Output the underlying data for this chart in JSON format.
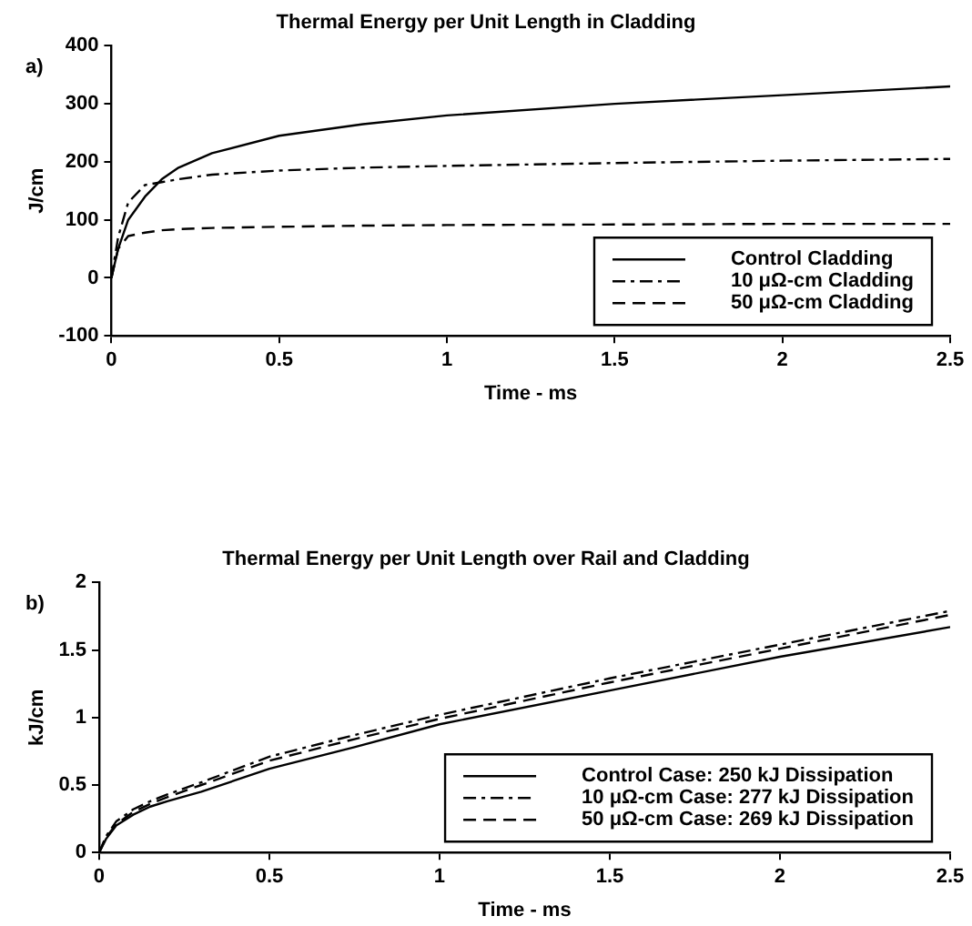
{
  "chart_data": [
    {
      "type": "line",
      "title": "Thermal Energy per Unit Length in Cladding",
      "xlabel": "Time - ms",
      "ylabel": "J/cm",
      "annotations": [
        "a)"
      ],
      "x": [
        0,
        0.02,
        0.05,
        0.1,
        0.15,
        0.2,
        0.3,
        0.5,
        0.75,
        1,
        1.5,
        2,
        2.5
      ],
      "series": [
        {
          "name": "Control Cladding",
          "color": "#000000",
          "line_style": "solid",
          "values": [
            0,
            50,
            100,
            140,
            170,
            190,
            215,
            245,
            265,
            280,
            300,
            315,
            330
          ]
        },
        {
          "name": "10 μΩ-cm Cladding",
          "color": "#000000",
          "line_style": "dashdot",
          "values": [
            0,
            70,
            130,
            160,
            165,
            170,
            178,
            185,
            190,
            193,
            198,
            202,
            205
          ]
        },
        {
          "name": "50 μΩ-cm Cladding",
          "color": "#000000",
          "line_style": "dashed",
          "values": [
            0,
            50,
            72,
            78,
            82,
            84,
            86,
            88,
            90,
            91,
            92,
            93,
            93
          ]
        }
      ],
      "xlim": [
        0,
        2.5
      ],
      "xticks": [
        0,
        0.5,
        1,
        1.5,
        2,
        2.5
      ],
      "ylim": [
        -100,
        400
      ],
      "yticks": [
        -100,
        0,
        100,
        200,
        300,
        400
      ],
      "grid": false,
      "legend": "bottom right",
      "marker": "none"
    },
    {
      "type": "line",
      "title": "Thermal Energy per Unit Length over Rail and Cladding",
      "xlabel": "Time - ms",
      "ylabel": "kJ/cm",
      "annotations": [
        "b)"
      ],
      "x": [
        0,
        0.02,
        0.05,
        0.1,
        0.15,
        0.2,
        0.3,
        0.5,
        0.75,
        1,
        1.5,
        2,
        2.5
      ],
      "series": [
        {
          "name": "Control Case: 250 kJ Dissipation",
          "color": "#000000",
          "line_style": "solid",
          "values": [
            0,
            0.1,
            0.2,
            0.28,
            0.34,
            0.38,
            0.45,
            0.62,
            0.78,
            0.95,
            1.2,
            1.45,
            1.67
          ]
        },
        {
          "name": "10 μΩ-cm Case: 277 kJ Dissipation",
          "color": "#000000",
          "line_style": "dashdot",
          "values": [
            0,
            0.12,
            0.23,
            0.32,
            0.38,
            0.43,
            0.52,
            0.71,
            0.87,
            1.02,
            1.29,
            1.54,
            1.79
          ]
        },
        {
          "name": "50 μΩ-cm Case: 269 kJ Dissipation",
          "color": "#000000",
          "line_style": "dashed",
          "values": [
            0,
            0.11,
            0.21,
            0.3,
            0.36,
            0.41,
            0.5,
            0.68,
            0.84,
            0.99,
            1.26,
            1.51,
            1.76
          ]
        }
      ],
      "xlim": [
        0,
        2.5
      ],
      "xticks": [
        0,
        0.5,
        1,
        1.5,
        2,
        2.5
      ],
      "ylim": [
        0,
        2
      ],
      "yticks": [
        0,
        0.5,
        1,
        1.5,
        2
      ],
      "grid": false,
      "legend": "bottom right",
      "marker": "none"
    }
  ]
}
